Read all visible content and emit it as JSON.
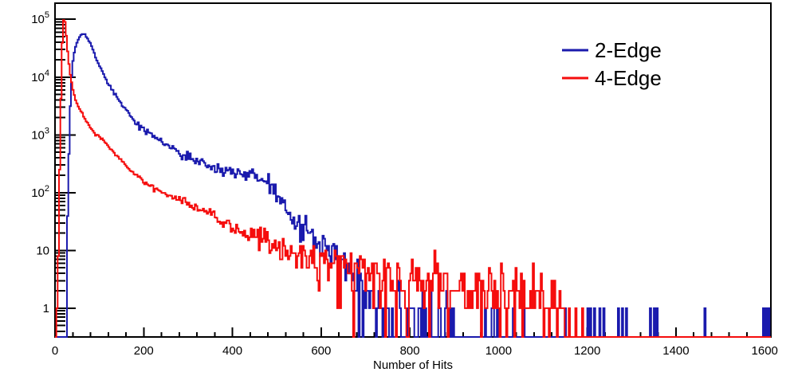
{
  "figure": {
    "background": "#ffffff",
    "frame_color": "#000000"
  },
  "chart_data": {
    "type": "line",
    "subtype": "histogram-step-log",
    "title": "",
    "xlabel": "Number of Hits",
    "ylabel": "",
    "xlim": [
      0,
      1614
    ],
    "ylim": [
      0.318,
      190000
    ],
    "y_scale": "log",
    "grid": false,
    "x_ticks": [
      0,
      200,
      400,
      600,
      800,
      1000,
      1200,
      1400,
      1600
    ],
    "x_minor_step": 40,
    "y_tick_labels": [
      "1",
      "10",
      "10^2",
      "10^3",
      "10^4",
      "10^5"
    ],
    "legend": {
      "position": "top-right",
      "entries": [
        {
          "label": "2-Edge",
          "color": "#1a1aad"
        },
        {
          "label": "4-Edge",
          "color": "#f50d0d"
        }
      ]
    },
    "bin_width": 3,
    "noise_seed": 7,
    "noise_sigma_log10": [
      [
        0,
        0.006
      ],
      [
        90,
        0.012
      ],
      [
        180,
        0.025
      ],
      [
        280,
        0.045
      ],
      [
        380,
        0.07
      ],
      [
        480,
        0.1
      ],
      [
        560,
        0.13
      ],
      [
        1620,
        0.13
      ]
    ],
    "poisson_below": 30,
    "series": [
      {
        "name": "2-Edge",
        "color": "#1a1aad",
        "peak": {
          "x": 63,
          "value": 56000
        },
        "envelope": [
          [
            24,
            0.32
          ],
          [
            26,
            3
          ],
          [
            28,
            25
          ],
          [
            30,
            150
          ],
          [
            32,
            700
          ],
          [
            34,
            2500
          ],
          [
            36,
            6500
          ],
          [
            38,
            12000
          ],
          [
            40,
            18000
          ],
          [
            44,
            28000
          ],
          [
            48,
            37000
          ],
          [
            52,
            44000
          ],
          [
            56,
            50000
          ],
          [
            60,
            55000
          ],
          [
            64,
            56000
          ],
          [
            68,
            54000
          ],
          [
            72,
            49000
          ],
          [
            78,
            41000
          ],
          [
            85,
            31000
          ],
          [
            92,
            22000
          ],
          [
            100,
            16000
          ],
          [
            110,
            11000
          ],
          [
            120,
            7800
          ],
          [
            132,
            5400
          ],
          [
            145,
            3900
          ],
          [
            160,
            2800
          ],
          [
            176,
            1870
          ],
          [
            200,
            1250
          ],
          [
            220,
            990
          ],
          [
            236,
            790
          ],
          [
            260,
            620
          ],
          [
            280,
            520
          ],
          [
            295,
            450
          ],
          [
            310,
            395
          ],
          [
            325,
            345
          ],
          [
            340,
            310
          ],
          [
            356,
            275
          ],
          [
            370,
            250
          ],
          [
            385,
            230
          ],
          [
            400,
            205
          ],
          [
            415,
            200
          ],
          [
            430,
            195
          ],
          [
            442,
            215
          ],
          [
            450,
            200
          ],
          [
            460,
            185
          ],
          [
            470,
            160
          ],
          [
            480,
            135
          ],
          [
            490,
            110
          ],
          [
            500,
            85
          ],
          [
            510,
            70
          ],
          [
            520,
            55
          ],
          [
            535,
            40
          ],
          [
            547,
            30
          ],
          [
            560,
            25
          ],
          [
            576,
            20
          ],
          [
            590,
            15
          ],
          [
            605,
            12
          ],
          [
            620,
            9.5
          ],
          [
            635,
            7.5
          ],
          [
            650,
            6
          ],
          [
            665,
            4
          ],
          [
            680,
            2.5
          ],
          [
            700,
            1.3
          ],
          [
            740,
            0.8
          ],
          [
            800,
            0.55
          ],
          [
            860,
            0.35
          ],
          [
            950,
            0.28
          ],
          [
            1050,
            0.24
          ],
          [
            1160,
            0.22
          ]
        ],
        "tail_spikes": [
          [
            1200,
            1
          ],
          [
            1207,
            1
          ],
          [
            1215,
            1
          ],
          [
            1229,
            1
          ],
          [
            1238,
            1
          ],
          [
            1270,
            1
          ],
          [
            1279,
            1
          ],
          [
            1287,
            1
          ],
          [
            1342,
            1
          ],
          [
            1350,
            1
          ],
          [
            1357,
            1
          ],
          [
            1466,
            1
          ],
          [
            1597,
            1
          ],
          [
            1604,
            1
          ],
          [
            1610,
            1
          ]
        ]
      },
      {
        "name": "4-Edge",
        "color": "#f50d0d",
        "peak": {
          "x": 20,
          "value": 105000
        },
        "envelope": [
          [
            3,
            0.32
          ],
          [
            5,
            1
          ],
          [
            6,
            3
          ],
          [
            7,
            8
          ],
          [
            8,
            20
          ],
          [
            9,
            55
          ],
          [
            10,
            150
          ],
          [
            11,
            400
          ],
          [
            12,
            1000
          ],
          [
            13,
            2600
          ],
          [
            14,
            7000
          ],
          [
            15,
            16000
          ],
          [
            16,
            30000
          ],
          [
            17,
            50000
          ],
          [
            18,
            72000
          ],
          [
            19,
            92000
          ],
          [
            20,
            104000
          ],
          [
            21,
            105000
          ],
          [
            22,
            97000
          ],
          [
            23,
            82000
          ],
          [
            24,
            66000
          ],
          [
            26,
            46000
          ],
          [
            28,
            31000
          ],
          [
            30,
            21000
          ],
          [
            33,
            13500
          ],
          [
            36,
            9000
          ],
          [
            40,
            6300
          ],
          [
            45,
            4400
          ],
          [
            50,
            3400
          ],
          [
            56,
            2750
          ],
          [
            61,
            2400
          ],
          [
            70,
            1750
          ],
          [
            80,
            1320
          ],
          [
            90,
            1060
          ],
          [
            100,
            950
          ],
          [
            110,
            780
          ],
          [
            120,
            630
          ],
          [
            133,
            490
          ],
          [
            146,
            380
          ],
          [
            158,
            310
          ],
          [
            170,
            245
          ],
          [
            180,
            205
          ],
          [
            191,
            180
          ],
          [
            203,
            158
          ],
          [
            215,
            136
          ],
          [
            226,
            120
          ],
          [
            236,
            107
          ],
          [
            248,
            97
          ],
          [
            260,
            88
          ],
          [
            278,
            78
          ],
          [
            295,
            70
          ],
          [
            310,
            60
          ],
          [
            325,
            52
          ],
          [
            340,
            46
          ],
          [
            356,
            41
          ],
          [
            368,
            36
          ],
          [
            380,
            32
          ],
          [
            392,
            29
          ],
          [
            403,
            27
          ],
          [
            418,
            24
          ],
          [
            430,
            22
          ],
          [
            445,
            19
          ],
          [
            460,
            17
          ],
          [
            475,
            15.5
          ],
          [
            490,
            14
          ],
          [
            505,
            12.5
          ],
          [
            520,
            11
          ],
          [
            535,
            10
          ],
          [
            550,
            9
          ],
          [
            565,
            8.2
          ],
          [
            580,
            7.5
          ],
          [
            595,
            7
          ],
          [
            610,
            6.5
          ],
          [
            625,
            6
          ],
          [
            640,
            5.5
          ],
          [
            655,
            5
          ],
          [
            670,
            4.8
          ],
          [
            685,
            4.4
          ],
          [
            700,
            4.2
          ],
          [
            725,
            3.8
          ],
          [
            750,
            3.5
          ],
          [
            775,
            3.3
          ],
          [
            800,
            3.2
          ],
          [
            825,
            3
          ],
          [
            850,
            2.8
          ],
          [
            875,
            2.7
          ],
          [
            900,
            2.6
          ],
          [
            925,
            2.5
          ],
          [
            950,
            2.4
          ],
          [
            975,
            2.3
          ],
          [
            1000,
            2.2
          ],
          [
            1025,
            2.1
          ],
          [
            1050,
            2
          ],
          [
            1075,
            1.9
          ],
          [
            1100,
            1.8
          ],
          [
            1125,
            1.6
          ],
          [
            1150,
            1.3
          ]
        ],
        "tail_spikes": [
          [
            1158,
            1
          ],
          [
            1173,
            1
          ],
          [
            1189,
            1
          ]
        ]
      }
    ]
  }
}
